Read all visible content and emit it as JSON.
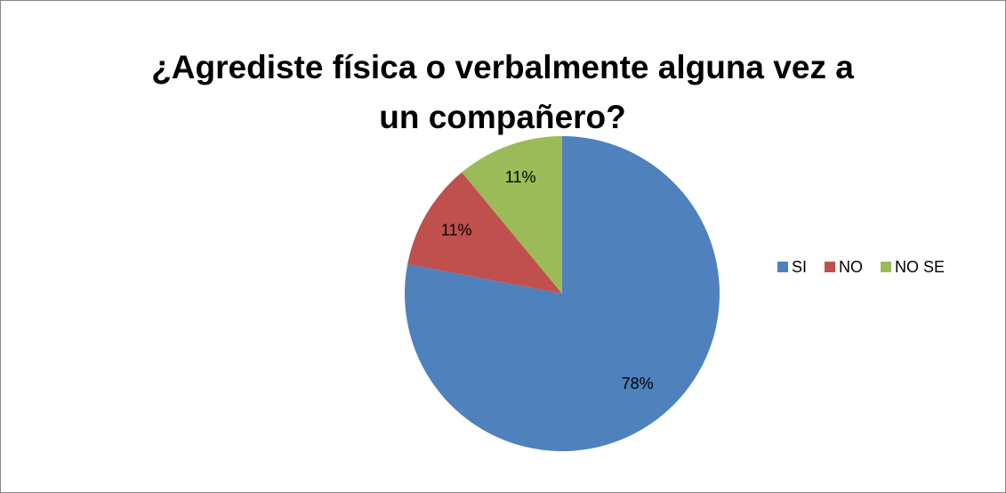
{
  "chart_data": {
    "type": "pie",
    "title": "¿Agrediste física o verbalmente alguna vez a un compañero?",
    "categories": [
      "SI",
      "NO",
      "NO SE"
    ],
    "values": [
      78,
      11,
      11
    ],
    "value_labels": [
      "78%",
      "11%",
      "11%"
    ],
    "colors": [
      "#4f81bd",
      "#c0504d",
      "#9bbb59"
    ],
    "legend": "right"
  }
}
